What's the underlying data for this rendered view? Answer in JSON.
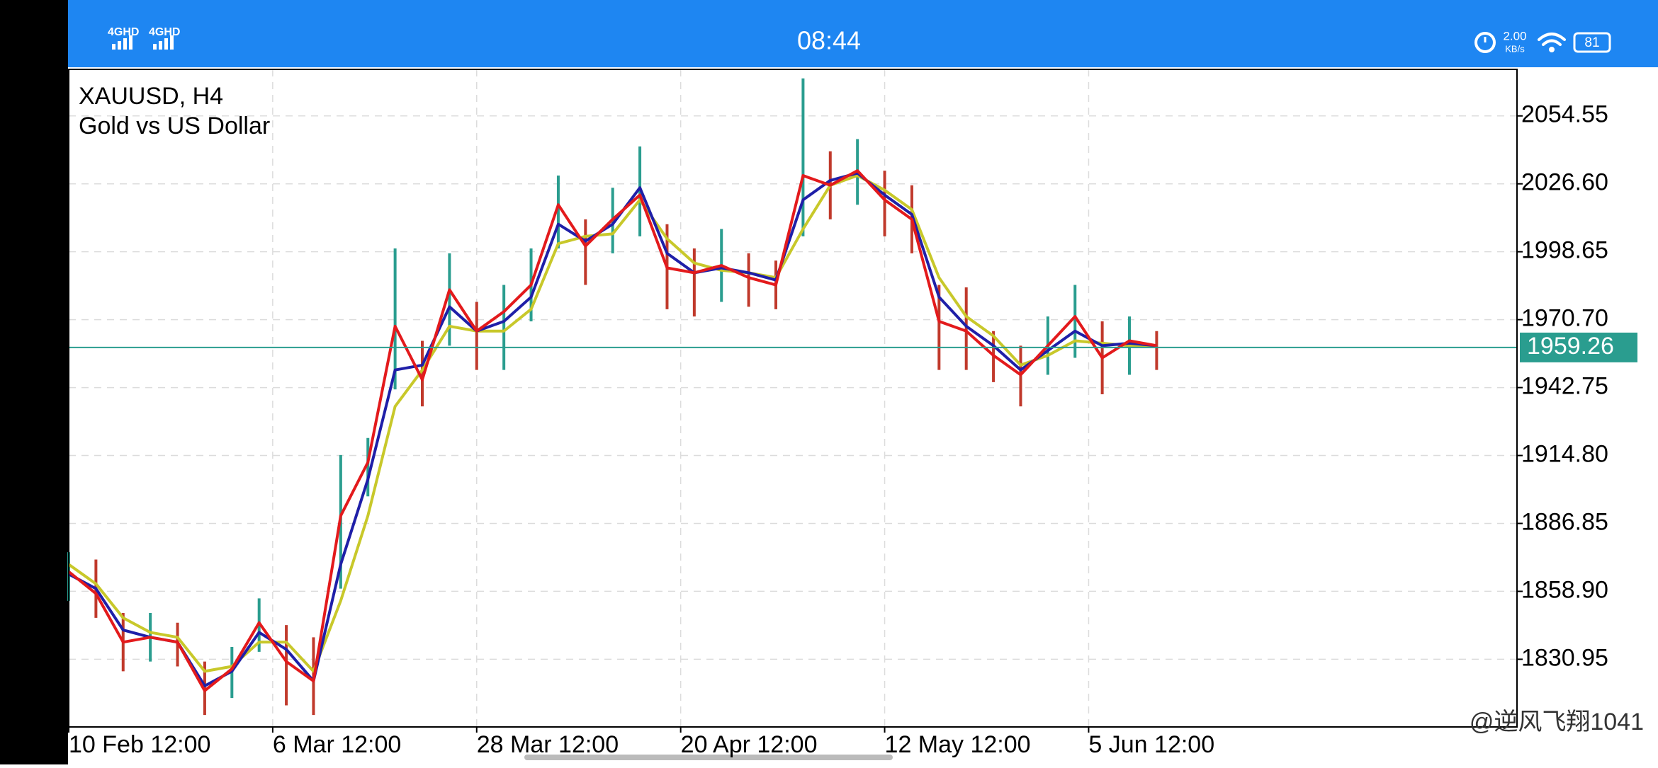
{
  "status_bar": {
    "network": [
      "4GHD",
      "4GHD"
    ],
    "time": "08:44",
    "speed": "2.00",
    "speed_unit": "KB/s",
    "battery": "81"
  },
  "chart_data": {
    "type": "ohlc",
    "title": "XAUUSD, H4",
    "subtitle": "Gold vs US Dollar",
    "x": [
      0,
      4,
      8,
      12,
      16,
      20,
      24,
      28,
      32,
      36,
      40,
      44,
      48,
      52,
      56,
      60,
      64,
      68,
      72,
      76,
      80,
      84,
      88,
      92,
      96,
      100,
      104,
      108,
      112,
      116,
      120,
      124,
      128,
      132,
      136,
      140,
      144,
      148,
      152,
      156,
      160
    ],
    "high": [
      1875,
      1872,
      1850,
      1850,
      1846,
      1830,
      1836,
      1856,
      1845,
      1840,
      1915,
      1922,
      2000,
      1962,
      1998,
      1978,
      1985,
      2000,
      2030,
      2012,
      2025,
      2042,
      2010,
      2000,
      2008,
      1998,
      1995,
      2070,
      2040,
      2045,
      2032,
      2026,
      1985,
      1984,
      1966,
      1960,
      1972,
      1985,
      1970,
      1972,
      1966
    ],
    "low": [
      1855,
      1848,
      1826,
      1830,
      1828,
      1808,
      1815,
      1834,
      1812,
      1808,
      1860,
      1898,
      1942,
      1935,
      1960,
      1950,
      1950,
      1970,
      2000,
      1985,
      1998,
      2005,
      1975,
      1972,
      1978,
      1976,
      1975,
      2005,
      2012,
      2018,
      2005,
      1998,
      1950,
      1950,
      1945,
      1935,
      1948,
      1955,
      1940,
      1948,
      1950
    ],
    "up_color": "#2a9d8f",
    "down_color": "#c0392b",
    "series": [
      {
        "color": "#e31a1c",
        "values": [
          1867,
          1858,
          1838,
          1840,
          1838,
          1818,
          1827,
          1846,
          1830,
          1822,
          1890,
          1912,
          1968,
          1946,
          1983,
          1966,
          1974,
          1985,
          2018,
          2001,
          2012,
          2022,
          1992,
          1990,
          1993,
          1988,
          1985,
          2030,
          2026,
          2032,
          2020,
          2012,
          1970,
          1966,
          1956,
          1948,
          1960,
          1972,
          1955,
          1962,
          1960
        ]
      },
      {
        "color": "#1f1fa8",
        "values": [
          1866,
          1860,
          1843,
          1840,
          1838,
          1820,
          1826,
          1842,
          1835,
          1822,
          1870,
          1905,
          1950,
          1952,
          1976,
          1966,
          1970,
          1980,
          2010,
          2003,
          2010,
          2025,
          1998,
          1990,
          1992,
          1990,
          1987,
          2020,
          2028,
          2031,
          2022,
          2014,
          1980,
          1968,
          1960,
          1950,
          1958,
          1966,
          1960,
          1961,
          1960
        ]
      },
      {
        "color": "#c8c82a",
        "values": [
          1870,
          1862,
          1848,
          1842,
          1840,
          1826,
          1828,
          1838,
          1838,
          1826,
          1855,
          1890,
          1935,
          1950,
          1968,
          1966,
          1966,
          1975,
          2002,
          2005,
          2006,
          2020,
          2004,
          1994,
          1991,
          1990,
          1988,
          2008,
          2026,
          2030,
          2024,
          2016,
          1988,
          1972,
          1964,
          1952,
          1956,
          1962,
          1961,
          1960,
          1960
        ]
      }
    ],
    "xlim": [
      0,
      213
    ],
    "xticks": [
      {
        "value": 0,
        "label": "10 Feb 12:00"
      },
      {
        "value": 30,
        "label": "6 Mar 12:00"
      },
      {
        "value": 60,
        "label": "28 Mar 12:00"
      },
      {
        "value": 90,
        "label": "20 Apr 12:00"
      },
      {
        "value": 120,
        "label": "12 May 12:00"
      },
      {
        "value": 150,
        "label": "5 Jun 12:00"
      }
    ],
    "ylim": [
      1803.1,
      2073.7
    ],
    "yticks": [
      1830.95,
      {
        "value": 1858.9,
        "label": "1858.90"
      },
      1886.85,
      {
        "value": 1914.8,
        "label": "1914.80"
      },
      1942.75,
      {
        "value": 1970.7,
        "label": "1970.70"
      },
      1998.65,
      {
        "value": 2026.6,
        "label": "2026.60"
      },
      2054.55
    ],
    "current_price": 1959.26,
    "current_price_color": "#2a9d8f",
    "grid": true
  },
  "watermark": "@逆风飞翔1041"
}
